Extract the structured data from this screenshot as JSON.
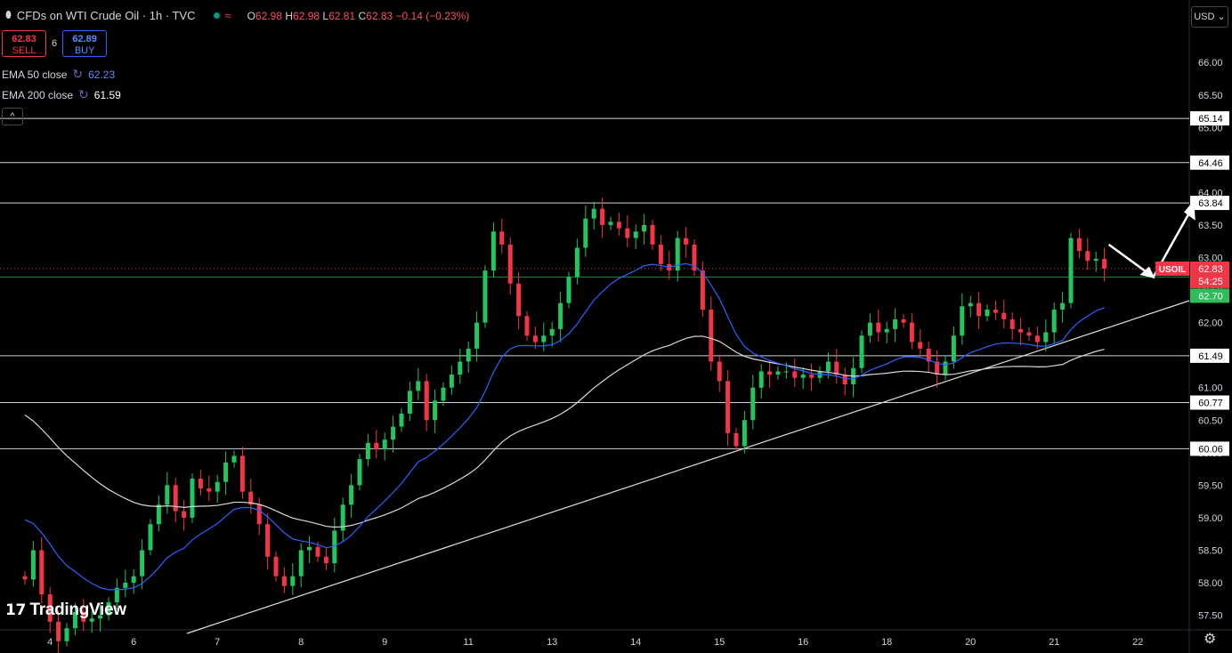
{
  "header": {
    "symbol": "CFDs on WTI Crude Oil · 1h · TVC",
    "open_label": "O",
    "open": "62.98",
    "high_label": "H",
    "high": "62.98",
    "low_label": "L",
    "low": "62.81",
    "close_label": "C",
    "close": "62.83",
    "change": "−0.14 (−0.23%)"
  },
  "trade": {
    "sell_price": "62.83",
    "sell_label": "SELL",
    "spread": "6",
    "buy_price": "62.89",
    "buy_label": "BUY"
  },
  "indicators": [
    {
      "label": "EMA 50 close",
      "value": "62.23",
      "color": "#2962ff"
    },
    {
      "label": "EMA 200 close",
      "value": "61.59",
      "color": "#ffffff"
    }
  ],
  "currency": "USD",
  "watermark": "TradingView",
  "colors": {
    "up": "#089981",
    "up_bright": "#22c55e",
    "down": "#f23645",
    "ema50": "#2962ff",
    "ema200": "#d9d9d9",
    "level": "#d1d4dc",
    "current": "#f23645",
    "green_line": "#2ebd59"
  },
  "chart_data": {
    "type": "candlestick",
    "y_ticks": [
      "66.00",
      "65.50",
      "65.00",
      "64.50",
      "64.00",
      "63.50",
      "63.00",
      "62.50",
      "62.00",
      "61.50",
      "61.00",
      "60.50",
      "60.00",
      "59.50",
      "59.00",
      "58.50",
      "58.00",
      "57.50"
    ],
    "x_ticks": [
      {
        "label": "4",
        "t": 3
      },
      {
        "label": "6",
        "t": 13
      },
      {
        "label": "7",
        "t": 23
      },
      {
        "label": "8",
        "t": 33
      },
      {
        "label": "9",
        "t": 43
      },
      {
        "label": "11",
        "t": 53
      },
      {
        "label": "13",
        "t": 63
      },
      {
        "label": "14",
        "t": 73
      },
      {
        "label": "15",
        "t": 83
      },
      {
        "label": "16",
        "t": 93
      },
      {
        "label": "18",
        "t": 103
      },
      {
        "label": "20",
        "t": 113
      },
      {
        "label": "21",
        "t": 123
      },
      {
        "label": "22",
        "t": 133
      }
    ],
    "levels": [
      65.14,
      64.46,
      63.84,
      61.49,
      60.77,
      60.06
    ],
    "level_labels": [
      "65.14",
      "64.46",
      "63.84",
      "61.49",
      "60.77",
      "60.06"
    ],
    "current_price": 62.83,
    "current_label": "62.83",
    "symbol_tag": "USOIL",
    "countdown": "54:25",
    "green_level": 62.7,
    "green_label": "62.70",
    "closes": [
      58.05,
      58.5,
      57.82,
      57.4,
      57.1,
      57.3,
      57.55,
      57.4,
      57.45,
      57.5,
      57.7,
      57.92,
      58.0,
      58.1,
      58.5,
      58.9,
      59.2,
      59.5,
      59.1,
      59.0,
      59.6,
      59.45,
      59.4,
      59.55,
      59.85,
      59.95,
      59.4,
      59.2,
      58.9,
      58.4,
      58.1,
      57.95,
      58.1,
      58.5,
      58.55,
      58.4,
      58.3,
      58.8,
      59.2,
      59.5,
      59.9,
      60.15,
      60.05,
      60.2,
      60.4,
      60.6,
      60.95,
      61.1,
      60.5,
      60.8,
      61.0,
      61.2,
      61.4,
      61.6,
      62.0,
      62.8,
      63.4,
      63.2,
      62.6,
      62.1,
      61.8,
      61.7,
      61.8,
      61.9,
      62.3,
      62.7,
      63.15,
      63.6,
      63.75,
      63.5,
      63.55,
      63.45,
      63.3,
      63.4,
      63.5,
      63.2,
      62.9,
      62.8,
      63.3,
      63.2,
      62.8,
      62.2,
      61.4,
      61.1,
      60.3,
      60.1,
      60.5,
      61.0,
      61.25,
      61.2,
      61.25,
      61.25,
      61.15,
      61.2,
      61.15,
      61.25,
      61.4,
      61.2,
      61.05,
      61.3,
      61.8,
      62.0,
      61.85,
      61.9,
      62.05,
      62.0,
      61.7,
      61.6,
      61.4,
      61.2,
      61.4,
      61.8,
      62.25,
      62.3,
      62.1,
      62.2,
      62.15,
      62.05,
      61.9,
      61.85,
      61.8,
      61.7,
      61.85,
      62.2,
      62.3,
      63.3,
      63.1,
      62.95,
      62.98,
      62.83
    ],
    "ema50_start": 59.1,
    "ema200_start": 60.7,
    "ema50_end": 62.23,
    "ema200_end": 61.59
  }
}
